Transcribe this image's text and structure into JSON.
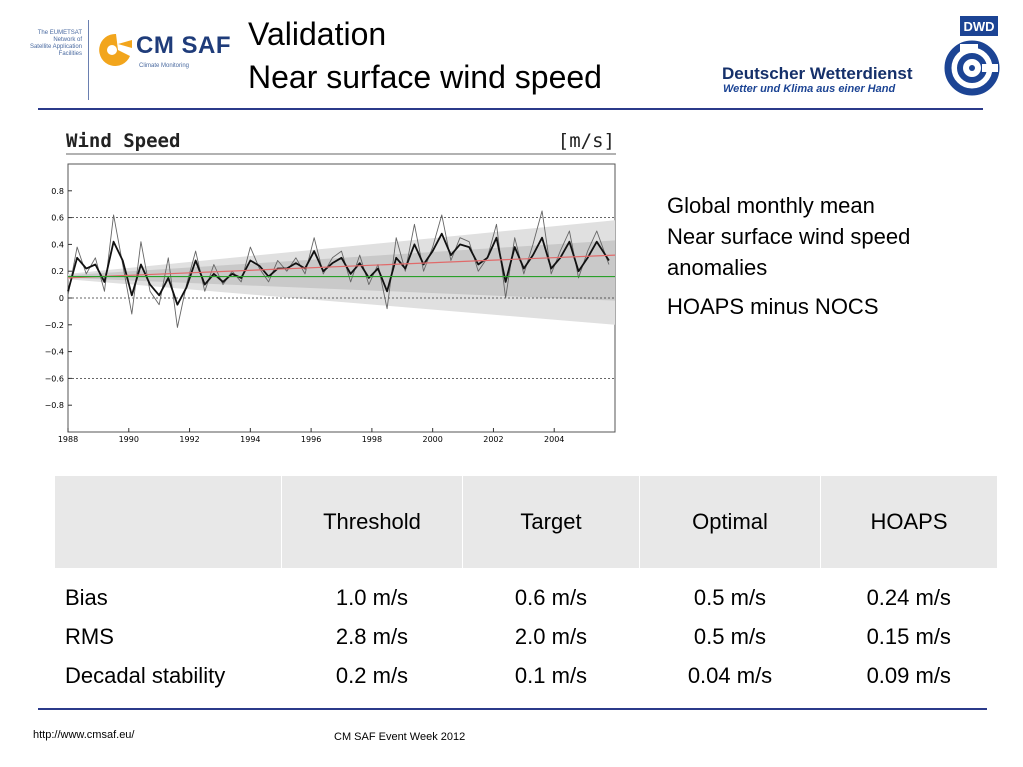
{
  "header": {
    "eumetsat_lines": [
      "The EUMETSAT",
      "Network of",
      "Satellite Application",
      "Facilities"
    ],
    "cmsaf_name": "CM SAF",
    "cmsaf_sub": "Climate Monitoring",
    "title_line1": "Validation",
    "title_line2": "Near surface wind speed",
    "dwd_badge": "DWD",
    "dwd_name": "Deutscher Wetterdienst",
    "dwd_slogan": "Wetter und Klima aus einer Hand"
  },
  "colors": {
    "rule": "#2b3a8a",
    "cmsaf_blue": "#1f3c7a",
    "cmsaf_orange": "#f2a51c",
    "dwd_blue": "#1c4494",
    "trend_red": "#e06a6a",
    "mean_green": "#2aa02a",
    "envelope_gray": "#d6d6d6"
  },
  "notes": {
    "line1": "Global monthly mean",
    "line2": "Near surface wind speed",
    "line3": "anomalies",
    "line4": "HOAPS minus NOCS"
  },
  "chart_data": {
    "type": "line",
    "title": "Wind Speed",
    "unit": "[m/s]",
    "xlim": [
      1988,
      2006
    ],
    "ylim": [
      -1.0,
      1.0
    ],
    "x_ticks": [
      "1988",
      "1990",
      "1992",
      "1994",
      "1996",
      "1998",
      "2000",
      "2002",
      "2004"
    ],
    "y_ticks": [
      "0.8",
      "0.6",
      "0.4",
      "0.2",
      "0",
      "−0.2",
      "−0.4",
      "−0.6",
      "−0.8"
    ],
    "reference_lines": [
      -0.6,
      0,
      0.6
    ],
    "series": [
      {
        "style": "thin-gray",
        "x": [
          1988.0,
          1988.3,
          1988.6,
          1988.9,
          1989.2,
          1989.5,
          1989.8,
          1990.1,
          1990.4,
          1990.7,
          1991.0,
          1991.3,
          1991.6,
          1991.9,
          1992.2,
          1992.5,
          1992.8,
          1993.1,
          1993.4,
          1993.7,
          1994.0,
          1994.3,
          1994.6,
          1994.9,
          1995.2,
          1995.5,
          1995.8,
          1996.1,
          1996.4,
          1996.7,
          1997.0,
          1997.3,
          1997.6,
          1997.9,
          1998.2,
          1998.5,
          1998.8,
          1999.1,
          1999.4,
          1999.7,
          2000.0,
          2000.3,
          2000.6,
          2000.9,
          2001.2,
          2001.5,
          2001.8,
          2002.1,
          2002.4,
          2002.7,
          2003.0,
          2003.3,
          2003.6,
          2003.9,
          2004.2,
          2004.5,
          2004.8,
          2005.1,
          2005.4,
          2005.8
        ],
        "y": [
          0.02,
          0.38,
          0.18,
          0.3,
          0.05,
          0.62,
          0.25,
          -0.12,
          0.42,
          0.05,
          -0.05,
          0.3,
          -0.22,
          0.1,
          0.35,
          0.05,
          0.25,
          0.1,
          0.2,
          0.12,
          0.38,
          0.22,
          0.12,
          0.28,
          0.2,
          0.3,
          0.18,
          0.45,
          0.18,
          0.3,
          0.35,
          0.12,
          0.32,
          0.1,
          0.25,
          -0.08,
          0.45,
          0.2,
          0.55,
          0.2,
          0.38,
          0.62,
          0.28,
          0.45,
          0.42,
          0.2,
          0.3,
          0.55,
          0.0,
          0.45,
          0.18,
          0.4,
          0.65,
          0.18,
          0.35,
          0.5,
          0.15,
          0.35,
          0.5,
          0.25
        ]
      },
      {
        "style": "thick-black",
        "x": [
          1988.0,
          1988.3,
          1988.6,
          1988.9,
          1989.2,
          1989.5,
          1989.8,
          1990.1,
          1990.4,
          1990.7,
          1991.0,
          1991.3,
          1991.6,
          1991.9,
          1992.2,
          1992.5,
          1992.8,
          1993.1,
          1993.4,
          1993.7,
          1994.0,
          1994.3,
          1994.6,
          1994.9,
          1995.2,
          1995.5,
          1995.8,
          1996.1,
          1996.4,
          1996.7,
          1997.0,
          1997.3,
          1997.6,
          1997.9,
          1998.2,
          1998.5,
          1998.8,
          1999.1,
          1999.4,
          1999.7,
          2000.0,
          2000.3,
          2000.6,
          2000.9,
          2001.2,
          2001.5,
          2001.8,
          2002.1,
          2002.4,
          2002.7,
          2003.0,
          2003.3,
          2003.6,
          2003.9,
          2004.2,
          2004.5,
          2004.8,
          2005.1,
          2005.4,
          2005.8
        ],
        "y": [
          0.05,
          0.3,
          0.22,
          0.25,
          0.12,
          0.42,
          0.28,
          0.02,
          0.25,
          0.1,
          0.02,
          0.15,
          -0.05,
          0.08,
          0.28,
          0.1,
          0.18,
          0.12,
          0.18,
          0.15,
          0.28,
          0.24,
          0.16,
          0.22,
          0.22,
          0.26,
          0.22,
          0.35,
          0.2,
          0.26,
          0.3,
          0.18,
          0.26,
          0.15,
          0.22,
          0.05,
          0.3,
          0.22,
          0.4,
          0.25,
          0.35,
          0.48,
          0.32,
          0.4,
          0.38,
          0.25,
          0.3,
          0.45,
          0.12,
          0.38,
          0.22,
          0.32,
          0.45,
          0.22,
          0.3,
          0.42,
          0.2,
          0.3,
          0.42,
          0.28
        ]
      },
      {
        "style": "trend-red",
        "x": [
          1988,
          2006
        ],
        "y": [
          0.15,
          0.32
        ]
      },
      {
        "style": "mean-green",
        "x": [
          1988,
          2006
        ],
        "y": [
          0.16,
          0.16
        ]
      }
    ],
    "envelopes": [
      {
        "x": [
          1988,
          2006
        ],
        "upper": [
          0.18,
          0.58
        ],
        "lower": [
          0.14,
          -0.2
        ]
      },
      {
        "x": [
          1988,
          2006
        ],
        "upper": [
          0.17,
          0.43
        ],
        "lower": [
          0.15,
          -0.02
        ]
      }
    ]
  },
  "table": {
    "headers": [
      "",
      "Threshold",
      "Target",
      "Optimal",
      "HOAPS"
    ],
    "rows": [
      [
        "Bias",
        "1.0 m/s",
        "0.6 m/s",
        "0.5 m/s",
        "0.24 m/s"
      ],
      [
        "RMS",
        "2.8 m/s",
        "2.0 m/s",
        "0.5 m/s",
        "0.15 m/s"
      ],
      [
        "Decadal stability",
        "0.2 m/s",
        "0.1 m/s",
        "0.04 m/s",
        "0.09 m/s"
      ]
    ]
  },
  "footer": {
    "url": "http://www.cmsaf.eu/",
    "event": "CM SAF Event Week 2012"
  }
}
